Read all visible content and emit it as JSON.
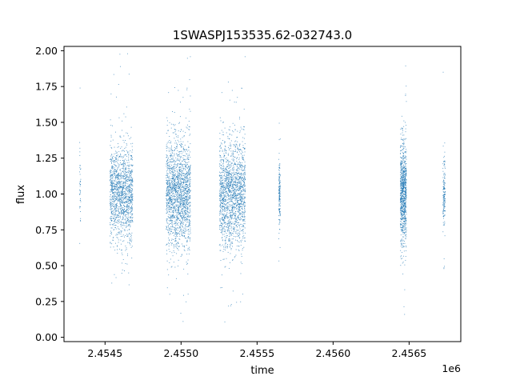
{
  "chart_data": {
    "type": "scatter",
    "title": "1SWASPJ153535.62-032743.0",
    "xlabel": "time",
    "ylabel": "flux",
    "x_offset_label": "1e6",
    "xlim": [
      2454230,
      2456840
    ],
    "ylim": [
      -0.03,
      2.03
    ],
    "x_ticks": [
      2454500,
      2455000,
      2455500,
      2456000,
      2456500
    ],
    "x_tick_labels": [
      "2.4545",
      "2.4550",
      "2.4555",
      "2.4560",
      "2.4565"
    ],
    "y_ticks": [
      0.0,
      0.25,
      0.5,
      0.75,
      1.0,
      1.25,
      1.5,
      1.75,
      2.0
    ],
    "y_tick_labels": [
      "0.00",
      "0.25",
      "0.50",
      "0.75",
      "1.00",
      "1.25",
      "1.50",
      "1.75",
      "2.00"
    ],
    "grid": false,
    "color": "#1f77b4",
    "point_size": "tiny",
    "series": [
      {
        "clusters": [
          {
            "t_start": 2454330,
            "t_end": 2454338,
            "mean": 1.1,
            "sd": 0.18,
            "n": 40
          },
          {
            "t_start": 2454530,
            "t_end": 2454680,
            "mean": 1.0,
            "sd": 0.16,
            "n": 1400
          },
          {
            "t_start": 2454900,
            "t_end": 2455060,
            "mean": 1.0,
            "sd": 0.18,
            "n": 1800
          },
          {
            "t_start": 2455250,
            "t_end": 2455420,
            "mean": 1.0,
            "sd": 0.18,
            "n": 1700
          },
          {
            "t_start": 2455640,
            "t_end": 2455650,
            "mean": 1.0,
            "sd": 0.12,
            "n": 150
          },
          {
            "t_start": 2456440,
            "t_end": 2456480,
            "mean": 1.0,
            "sd": 0.17,
            "n": 900
          },
          {
            "t_start": 2456720,
            "t_end": 2456735,
            "mean": 1.0,
            "sd": 0.12,
            "n": 160
          }
        ]
      }
    ]
  }
}
